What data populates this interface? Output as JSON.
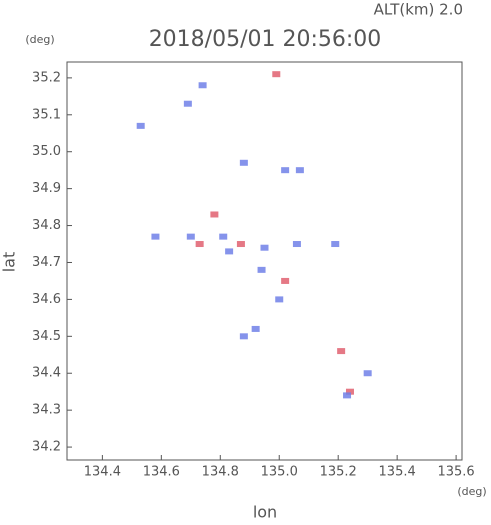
{
  "chart_data": {
    "type": "scatter",
    "title": "2018/05/01 20:56:00",
    "subtitle": "ALT(km) 2.0",
    "x_label": "lon",
    "y_label": "lat",
    "x_unit": "(deg)",
    "y_unit": "(deg)",
    "xlim": [
      134.28,
      135.62
    ],
    "ylim": [
      34.165,
      35.243
    ],
    "xticks": [
      134.4,
      134.6,
      134.8,
      {
        "value": 135,
        "label": "135.0"
      },
      135.2,
      135.4,
      135.6
    ],
    "yticks": [
      34.2,
      34.3,
      34.4,
      34.5,
      34.6,
      34.7,
      34.8,
      34.9,
      {
        "value": 35,
        "label": "35.0"
      },
      35.1,
      35.2
    ],
    "x": [
      134.74,
      134.69,
      134.99,
      134.53,
      134.88,
      135.02,
      135.07,
      134.58,
      134.7,
      134.78,
      134.81,
      134.87,
      134.95,
      135.06,
      135.19,
      134.94,
      135.02,
      135.0,
      134.92,
      134.88,
      135.21,
      135.24,
      135.23,
      135.3,
      134.83,
      134.73
    ],
    "y": [
      35.18,
      35.13,
      35.21,
      35.07,
      34.97,
      34.95,
      34.95,
      34.77,
      34.77,
      34.83,
      34.77,
      34.75,
      34.74,
      34.75,
      34.75,
      34.68,
      34.65,
      34.6,
      34.52,
      34.5,
      34.46,
      34.35,
      34.34,
      34.4,
      34.73,
      34.75
    ],
    "colors": [
      "#7080e8",
      "#7080e8",
      "#e06070",
      "#7080e8",
      "#7080e8",
      "#7080e8",
      "#7080e8",
      "#7080e8",
      "#7080e8",
      "#e06070",
      "#7080e8",
      "#e06070",
      "#7080e8",
      "#7080e8",
      "#7080e8",
      "#7080e8",
      "#e06070",
      "#7080e8",
      "#7080e8",
      "#7080e8",
      "#e06070",
      "#e06070",
      "#7080e8",
      "#7080e8",
      "#7080e8",
      "#e06070"
    ]
  }
}
